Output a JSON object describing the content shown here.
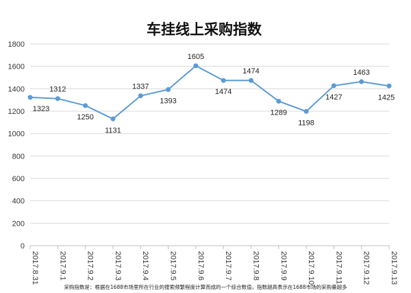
{
  "chart_data": {
    "type": "line",
    "title": "车挂线上采购指数",
    "categories": [
      "2017.8.31",
      "2017.9.1",
      "2017.9.2",
      "2017.9.3",
      "2017.9.4",
      "2017.9.5",
      "2017.9.6",
      "2017.9.7",
      "2017.9.8",
      "2017.9.9",
      "2017.9.10",
      "2017.9.11",
      "2017.9.12",
      "2017.9.13"
    ],
    "series": [
      {
        "values": [
          1323,
          1312,
          1250,
          1131,
          1337,
          1393,
          1605,
          1474,
          1474,
          1289,
          1198,
          1427,
          1463,
          1425
        ]
      }
    ],
    "ylim": [
      0,
      1800
    ],
    "yticks": [
      0,
      200,
      400,
      600,
      800,
      1000,
      1200,
      1400,
      1600,
      1800
    ],
    "grid": true,
    "legend": "none",
    "colors": {
      "line": "#5b9bd5",
      "grid": "#d9d9d9",
      "axis": "#bfbfbf"
    },
    "footnote": "采购指数是：根据在1688市场里所在行业的搜索频繁程度计算而成的一个综合数值，指数越高表示在1688市场的采购量越多"
  }
}
